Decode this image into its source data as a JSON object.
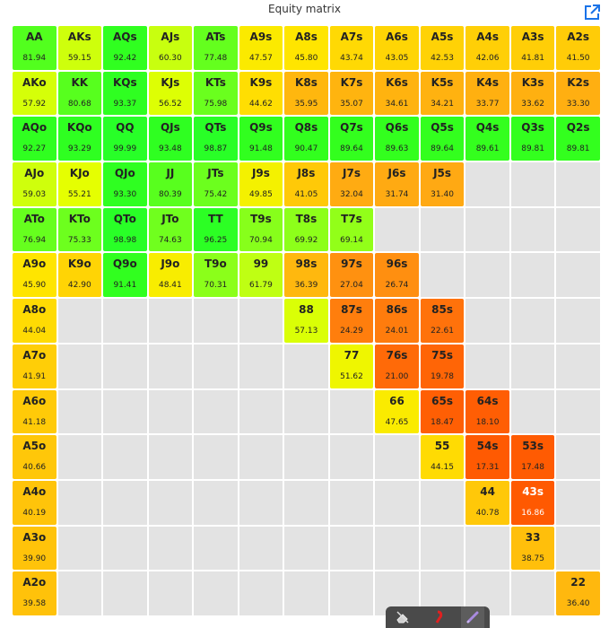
{
  "header": {
    "title": "Equity matrix",
    "external_link_icon": "external-link-icon"
  },
  "toolbar": {
    "buttons": [
      "eraser-icon",
      "highlighter-icon",
      "pen-icon"
    ]
  },
  "colors": {
    "empty": "#e3e3e3",
    "high": "#33ff22",
    "low": "#ff5500"
  },
  "cells": [
    [
      "AA",
      "81.94",
      "AKs",
      "59.15",
      "AQs",
      "92.42",
      "AJs",
      "60.30",
      "ATs",
      "77.48",
      "A9s",
      "47.57",
      "A8s",
      "45.80",
      "A7s",
      "43.74",
      "A6s",
      "43.05",
      "A5s",
      "42.53",
      "A4s",
      "42.06",
      "A3s",
      "41.81",
      "A2s",
      "41.50"
    ],
    [
      "AKo",
      "57.92",
      "KK",
      "80.68",
      "KQs",
      "93.37",
      "KJs",
      "56.52",
      "KTs",
      "75.98",
      "K9s",
      "44.62",
      "K8s",
      "35.95",
      "K7s",
      "35.07",
      "K6s",
      "34.61",
      "K5s",
      "34.21",
      "K4s",
      "33.77",
      "K3s",
      "33.62",
      "K2s",
      "33.30"
    ],
    [
      "AQo",
      "92.27",
      "KQo",
      "93.29",
      "QQ",
      "99.99",
      "QJs",
      "93.48",
      "QTs",
      "98.87",
      "Q9s",
      "91.48",
      "Q8s",
      "90.47",
      "Q7s",
      "89.64",
      "Q6s",
      "89.63",
      "Q5s",
      "89.64",
      "Q4s",
      "89.61",
      "Q3s",
      "89.81",
      "Q2s",
      "89.81"
    ],
    [
      "AJo",
      "59.03",
      "KJo",
      "55.21",
      "QJo",
      "93.30",
      "JJ",
      "80.39",
      "JTs",
      "75.42",
      "J9s",
      "49.85",
      "J8s",
      "41.05",
      "J7s",
      "32.04",
      "J6s",
      "31.74",
      "J5s",
      "31.40",
      "",
      "",
      "",
      "",
      "",
      ""
    ],
    [
      "ATo",
      "76.94",
      "KTo",
      "75.33",
      "QTo",
      "98.98",
      "JTo",
      "74.63",
      "TT",
      "96.25",
      "T9s",
      "70.94",
      "T8s",
      "69.92",
      "T7s",
      "69.14",
      "",
      "",
      "",
      "",
      "",
      "",
      "",
      "",
      "",
      ""
    ],
    [
      "A9o",
      "45.90",
      "K9o",
      "42.90",
      "Q9o",
      "91.41",
      "J9o",
      "48.41",
      "T9o",
      "70.31",
      "99",
      "61.79",
      "98s",
      "36.39",
      "97s",
      "27.04",
      "96s",
      "26.74",
      "",
      "",
      "",
      "",
      "",
      "",
      "",
      ""
    ],
    [
      "A8o",
      "44.04",
      "",
      "",
      "",
      "",
      "",
      "",
      "",
      "",
      "",
      "",
      "88",
      "57.13",
      "87s",
      "24.29",
      "86s",
      "24.01",
      "85s",
      "22.61",
      "",
      "",
      "",
      "",
      "",
      ""
    ],
    [
      "A7o",
      "41.91",
      "",
      "",
      "",
      "",
      "",
      "",
      "",
      "",
      "",
      "",
      "",
      "",
      "77",
      "51.62",
      "76s",
      "21.00",
      "75s",
      "19.78",
      "",
      "",
      "",
      "",
      "",
      ""
    ],
    [
      "A6o",
      "41.18",
      "",
      "",
      "",
      "",
      "",
      "",
      "",
      "",
      "",
      "",
      "",
      "",
      "",
      "",
      "66",
      "47.65",
      "65s",
      "18.47",
      "64s",
      "18.10",
      "",
      "",
      "",
      ""
    ],
    [
      "A5o",
      "40.66",
      "",
      "",
      "",
      "",
      "",
      "",
      "",
      "",
      "",
      "",
      "",
      "",
      "",
      "",
      "",
      "",
      "55",
      "44.15",
      "54s",
      "17.31",
      "53s",
      "17.48",
      "",
      ""
    ],
    [
      "A4o",
      "40.19",
      "",
      "",
      "",
      "",
      "",
      "",
      "",
      "",
      "",
      "",
      "",
      "",
      "",
      "",
      "",
      "",
      "",
      "",
      "44",
      "40.78",
      "43s",
      "16.86",
      "",
      ""
    ],
    [
      "A3o",
      "39.90",
      "",
      "",
      "",
      "",
      "",
      "",
      "",
      "",
      "",
      "",
      "",
      "",
      "",
      "",
      "",
      "",
      "",
      "",
      "",
      "",
      "33",
      "38.75",
      "",
      ""
    ],
    [
      "A2o",
      "39.58",
      "",
      "",
      "",
      "",
      "",
      "",
      "",
      "",
      "",
      "",
      "",
      "",
      "",
      "",
      "",
      "",
      "",
      "",
      "",
      "",
      "",
      "",
      "22",
      "36.40"
    ]
  ]
}
